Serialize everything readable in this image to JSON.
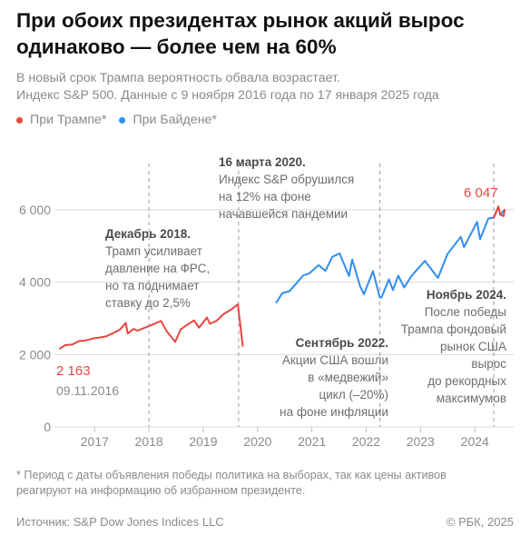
{
  "header": {
    "title": "При обоих президентах рынок акций вырос одинаково —  более чем на 60%",
    "subtitle_line1": "В новый срок Трампа вероятность обвала возрастает.",
    "subtitle_line2": "Индекс S&P 500. Данные с 9 ноября 2016 года по 17 января 2025 года"
  },
  "legend": [
    {
      "label": "При Трампе*",
      "color": "#e8463f"
    },
    {
      "label": "При Байдене*",
      "color": "#2f8ef0"
    }
  ],
  "chart_data": {
    "type": "line",
    "title": "",
    "xlabel": "",
    "ylabel": "",
    "ylim": [
      0,
      7000
    ],
    "yticks": [
      0,
      2000,
      4000,
      6000
    ],
    "ytick_labels": [
      "0",
      "2 000",
      "4 000",
      "6 000"
    ],
    "xticks": [
      "2017",
      "2018",
      "2019",
      "2020",
      "2021",
      "2022",
      "2023",
      "2024"
    ],
    "x_range": [
      "2016-11-09",
      "2025-01-17"
    ],
    "grid": true,
    "series": [
      {
        "name": "При Трампе*",
        "color": "#e8463f",
        "points": [
          [
            "2016-11-09",
            2163
          ],
          [
            "2016-12-15",
            2260
          ],
          [
            "2017-02-01",
            2280
          ],
          [
            "2017-03-15",
            2370
          ],
          [
            "2017-05-01",
            2390
          ],
          [
            "2017-06-15",
            2440
          ],
          [
            "2017-08-01",
            2470
          ],
          [
            "2017-09-15",
            2500
          ],
          [
            "2017-11-01",
            2590
          ],
          [
            "2017-12-15",
            2680
          ],
          [
            "2018-01-26",
            2872
          ],
          [
            "2018-02-08",
            2580
          ],
          [
            "2018-03-20",
            2710
          ],
          [
            "2018-04-15",
            2660
          ],
          [
            "2018-06-01",
            2740
          ],
          [
            "2018-07-15",
            2810
          ],
          [
            "2018-09-20",
            2930
          ],
          [
            "2018-10-29",
            2640
          ],
          [
            "2018-12-24",
            2350
          ],
          [
            "2019-01-31",
            2700
          ],
          [
            "2019-03-15",
            2820
          ],
          [
            "2019-04-30",
            2945
          ],
          [
            "2019-06-03",
            2745
          ],
          [
            "2019-07-26",
            3025
          ],
          [
            "2019-08-15",
            2850
          ],
          [
            "2019-10-01",
            2940
          ],
          [
            "2019-11-15",
            3120
          ],
          [
            "2019-12-31",
            3230
          ],
          [
            "2020-02-19",
            3386
          ],
          [
            "2020-03-23",
            2237
          ]
        ]
      },
      {
        "name": "При Байдене*",
        "color": "#2f8ef0",
        "points": [
          [
            "2020-11-04",
            3443
          ],
          [
            "2020-12-15",
            3700
          ],
          [
            "2021-01-31",
            3750
          ],
          [
            "2021-03-15",
            3950
          ],
          [
            "2021-05-01",
            4180
          ],
          [
            "2021-06-15",
            4250
          ],
          [
            "2021-08-15",
            4470
          ],
          [
            "2021-09-30",
            4310
          ],
          [
            "2021-11-15",
            4700
          ],
          [
            "2022-01-03",
            4796
          ],
          [
            "2022-03-08",
            4170
          ],
          [
            "2022-03-29",
            4630
          ],
          [
            "2022-05-20",
            3900
          ],
          [
            "2022-06-16",
            3667
          ],
          [
            "2022-08-16",
            4305
          ],
          [
            "2022-09-30",
            3586
          ],
          [
            "2022-10-12",
            3577
          ],
          [
            "2022-12-01",
            4080
          ],
          [
            "2022-12-28",
            3783
          ],
          [
            "2023-02-02",
            4180
          ],
          [
            "2023-03-13",
            3855
          ],
          [
            "2023-05-01",
            4170
          ],
          [
            "2023-07-31",
            4590
          ],
          [
            "2023-10-27",
            4117
          ],
          [
            "2023-12-29",
            4770
          ],
          [
            "2024-03-28",
            5254
          ],
          [
            "2024-04-19",
            4967
          ],
          [
            "2024-07-16",
            5667
          ],
          [
            "2024-08-05",
            5186
          ],
          [
            "2024-09-30",
            5762
          ],
          [
            "2024-11-05",
            5782
          ],
          [
            "2024-12-06",
            6090
          ],
          [
            "2024-12-19",
            5867
          ],
          [
            "2025-01-17",
            5997
          ]
        ]
      },
      {
        "name": "",
        "color": "#e8463f",
        "points": [
          [
            "2024-11-05",
            5782
          ],
          [
            "2024-11-20",
            5920
          ],
          [
            "2024-12-06",
            6090
          ],
          [
            "2024-12-19",
            5867
          ],
          [
            "2025-01-10",
            5827
          ],
          [
            "2025-01-17",
            5997
          ]
        ]
      }
    ],
    "markers": [
      {
        "date": "2018-07-01"
      },
      {
        "date": "2020-02-24"
      },
      {
        "date": "2022-10-01"
      },
      {
        "date": "2024-11-05"
      }
    ],
    "annotations": {
      "start_value": "2 163",
      "start_date": "09.11.2016",
      "peak_value": "6 047",
      "dec2018_title": "Декабрь 2018.",
      "dec2018_lines": [
        "Трамп усиливает",
        "давление на ФРС,",
        "но та поднимает",
        "ставку до 2,5%"
      ],
      "mar2020_title": "16 марта 2020.",
      "mar2020_lines": [
        "Индекс S&P обрушился",
        "на 12% на фоне",
        "начавшейся пандемии"
      ],
      "sep2022_title": "Сентябрь 2022.",
      "sep2022_lines": [
        "Акции США вошли",
        "в «медвежий»",
        "цикл (–20%)",
        "на фоне инфляции"
      ],
      "nov2024_title": "Ноябрь 2024.",
      "nov2024_lines": [
        "После победы",
        "Трампа фондовый",
        "рынок США",
        "вырос",
        "до рекордных",
        "максимумов"
      ]
    }
  },
  "footer": {
    "footnote_line1": "* Период с даты объявления победы политика на выборах, так как цены активов",
    "footnote_line2": "реагируют на информацию об избранном президенте.",
    "source": "Источник: S&P Dow Jones Indices LLC",
    "copyright": "© РБК, 2025"
  }
}
